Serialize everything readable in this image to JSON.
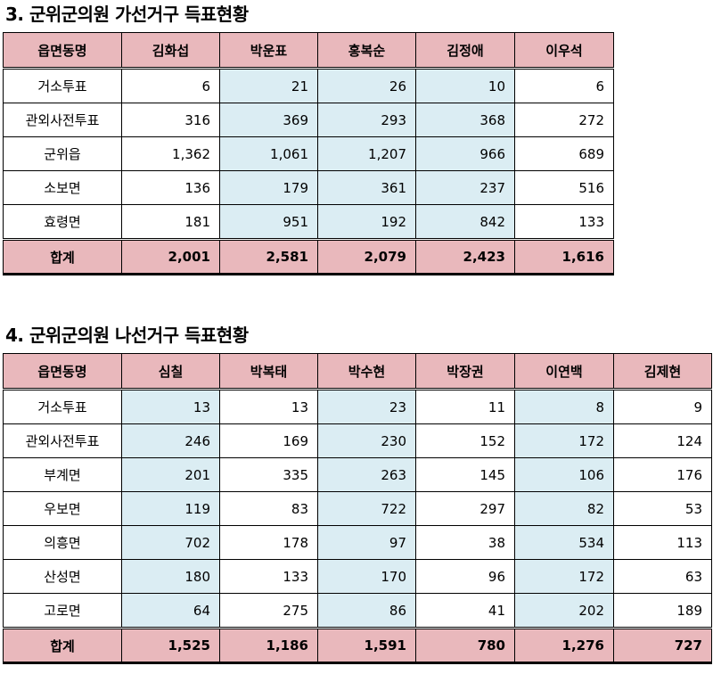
{
  "section1": {
    "title": "3. 군위군의원 가선거구 득표현황",
    "header_label": "읍면동명",
    "candidates": [
      "김화섭",
      "박운표",
      "홍복순",
      "김정애",
      "이우석"
    ],
    "highlight_cols": [
      1,
      2,
      3
    ],
    "rows": [
      {
        "label": "거소투표",
        "values": [
          "6",
          "21",
          "26",
          "10",
          "6"
        ]
      },
      {
        "label": "관외사전투표",
        "values": [
          "316",
          "369",
          "293",
          "368",
          "272"
        ]
      },
      {
        "label": "군위읍",
        "values": [
          "1,362",
          "1,061",
          "1,207",
          "966",
          "689"
        ]
      },
      {
        "label": "소보면",
        "values": [
          "136",
          "179",
          "361",
          "237",
          "516"
        ]
      },
      {
        "label": "효령면",
        "values": [
          "181",
          "951",
          "192",
          "842",
          "133"
        ]
      }
    ],
    "total": {
      "label": "합계",
      "values": [
        "2,001",
        "2,581",
        "2,079",
        "2,423",
        "1,616"
      ]
    }
  },
  "section2": {
    "title": "4. 군위군의원 나선거구 득표현황",
    "header_label": "읍면동명",
    "candidates": [
      "심칠",
      "박복태",
      "박수현",
      "박장권",
      "이연백",
      "김제현"
    ],
    "highlight_cols": [
      0,
      2,
      4
    ],
    "rows": [
      {
        "label": "거소투표",
        "values": [
          "13",
          "13",
          "23",
          "11",
          "8",
          "9"
        ]
      },
      {
        "label": "관외사전투표",
        "values": [
          "246",
          "169",
          "230",
          "152",
          "172",
          "124"
        ]
      },
      {
        "label": "부계면",
        "values": [
          "201",
          "335",
          "263",
          "145",
          "106",
          "176"
        ]
      },
      {
        "label": "우보면",
        "values": [
          "119",
          "83",
          "722",
          "297",
          "82",
          "53"
        ]
      },
      {
        "label": "의흥면",
        "values": [
          "702",
          "178",
          "97",
          "38",
          "534",
          "113"
        ]
      },
      {
        "label": "산성면",
        "values": [
          "180",
          "133",
          "170",
          "96",
          "172",
          "63"
        ]
      },
      {
        "label": "고로면",
        "values": [
          "64",
          "275",
          "86",
          "41",
          "202",
          "189"
        ]
      }
    ],
    "total": {
      "label": "합계",
      "values": [
        "1,525",
        "1,186",
        "1,591",
        "780",
        "1,276",
        "727"
      ]
    }
  }
}
